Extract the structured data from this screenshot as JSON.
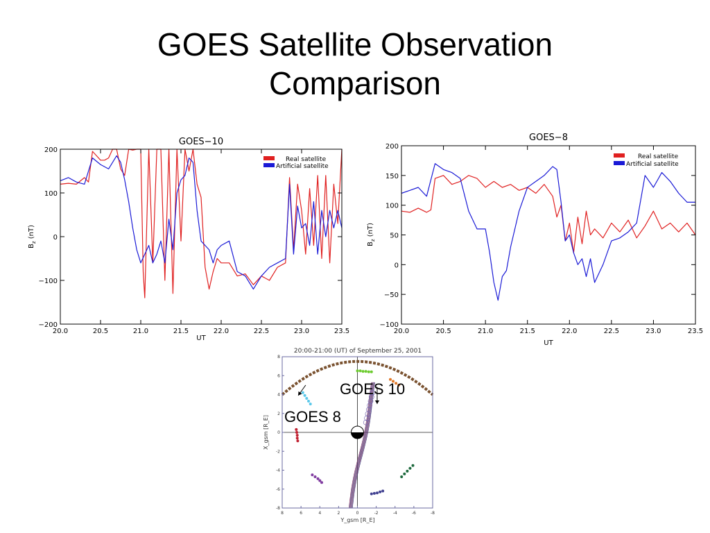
{
  "slide": {
    "title_line1": "GOES Satellite Observation",
    "title_line2": "Comparison"
  },
  "colors": {
    "real": "#e02020",
    "artificial": "#1a1ad6",
    "dashed_arc": "#7a5230"
  },
  "chart_data": [
    {
      "type": "line",
      "title": "GOES−10",
      "xlabel": "UT",
      "ylabel": "B_z (nT)",
      "ylabel_main": "B",
      "ylabel_sub": "z",
      "ylabel_unit": " (nT)",
      "xlim": [
        20.0,
        23.5
      ],
      "ylim": [
        -200,
        200
      ],
      "xticks": [
        20.0,
        20.5,
        21.0,
        21.5,
        22.0,
        22.5,
        23.0,
        23.5
      ],
      "xtick_labels": [
        "20.0",
        "20.5",
        "21.0",
        "21.5",
        "22.0",
        "22.5",
        "23.0",
        "23.5"
      ],
      "yticks": [
        -200,
        -100,
        0,
        100,
        200
      ],
      "ytick_labels": [
        "−200",
        "−100",
        "0",
        "100",
        "200"
      ],
      "legend_position": "top-right",
      "series": [
        {
          "name": "Real satellite",
          "color": "#e02020",
          "x": [
            20.0,
            20.1,
            20.2,
            20.3,
            20.35,
            20.4,
            20.45,
            20.5,
            20.55,
            20.6,
            20.65,
            20.7,
            20.75,
            20.8,
            20.85,
            20.9,
            20.95,
            21.0,
            21.03,
            21.05,
            21.1,
            21.15,
            21.2,
            21.25,
            21.3,
            21.35,
            21.4,
            21.45,
            21.5,
            21.55,
            21.6,
            21.65,
            21.7,
            21.75,
            21.8,
            21.85,
            21.9,
            21.95,
            22.0,
            22.1,
            22.2,
            22.3,
            22.4,
            22.5,
            22.6,
            22.7,
            22.8,
            22.85,
            22.9,
            22.95,
            23.0,
            23.05,
            23.1,
            23.15,
            23.2,
            23.25,
            23.3,
            23.35,
            23.4,
            23.45,
            23.5
          ],
          "y": [
            120,
            122,
            120,
            135,
            125,
            195,
            185,
            175,
            175,
            180,
            200,
            200,
            155,
            140,
            200,
            198,
            200,
            200,
            -80,
            -140,
            200,
            -60,
            200,
            200,
            -100,
            200,
            -130,
            200,
            -10,
            200,
            150,
            200,
            120,
            90,
            -70,
            -120,
            -80,
            -50,
            -60,
            -60,
            -90,
            -85,
            -110,
            -90,
            -100,
            -70,
            -60,
            135,
            -30,
            120,
            60,
            -40,
            110,
            -20,
            140,
            -50,
            140,
            -60,
            120,
            30,
            200
          ]
        },
        {
          "name": "Artificial satellite",
          "color": "#1a1ad6",
          "x": [
            20.0,
            20.1,
            20.2,
            20.3,
            20.4,
            20.5,
            20.6,
            20.7,
            20.75,
            20.8,
            20.85,
            20.9,
            20.95,
            21.0,
            21.05,
            21.1,
            21.15,
            21.2,
            21.25,
            21.3,
            21.35,
            21.4,
            21.45,
            21.5,
            21.55,
            21.6,
            21.65,
            21.7,
            21.75,
            21.8,
            21.85,
            21.9,
            21.95,
            22.0,
            22.1,
            22.2,
            22.3,
            22.4,
            22.5,
            22.6,
            22.7,
            22.8,
            22.85,
            22.9,
            22.95,
            23.0,
            23.05,
            23.1,
            23.15,
            23.2,
            23.25,
            23.3,
            23.35,
            23.4,
            23.45,
            23.5
          ],
          "y": [
            128,
            135,
            125,
            120,
            180,
            165,
            155,
            185,
            170,
            130,
            80,
            20,
            -30,
            -60,
            -40,
            -20,
            -60,
            -40,
            -10,
            -60,
            40,
            -30,
            100,
            130,
            140,
            180,
            170,
            60,
            -10,
            -20,
            -30,
            -60,
            -30,
            -20,
            -10,
            -80,
            -90,
            -120,
            -90,
            -70,
            -60,
            -50,
            120,
            -40,
            70,
            20,
            30,
            -20,
            80,
            -40,
            60,
            0,
            60,
            20,
            60,
            20
          ]
        }
      ]
    },
    {
      "type": "line",
      "title": "GOES−8",
      "xlabel": "UT",
      "ylabel": "B_z (nT)",
      "ylabel_main": "B",
      "ylabel_sub": "z",
      "ylabel_unit": " (nT)",
      "xlim": [
        20.0,
        23.5
      ],
      "ylim": [
        -100,
        200
      ],
      "xticks": [
        20.0,
        20.5,
        21.0,
        21.5,
        22.0,
        22.5,
        23.0,
        23.5
      ],
      "xtick_labels": [
        "20.0",
        "20.5",
        "21.0",
        "21.5",
        "22.0",
        "22.5",
        "23.0",
        "23.5"
      ],
      "yticks": [
        -100,
        -50,
        0,
        50,
        100,
        150,
        200
      ],
      "ytick_labels": [
        "−100",
        "−50",
        "0",
        "50",
        "100",
        "150",
        "200"
      ],
      "legend_position": "top-right",
      "series": [
        {
          "name": "Real satellite",
          "color": "#e02020",
          "x": [
            20.0,
            20.1,
            20.2,
            20.3,
            20.35,
            20.4,
            20.5,
            20.6,
            20.7,
            20.8,
            20.9,
            21.0,
            21.1,
            21.2,
            21.3,
            21.4,
            21.5,
            21.6,
            21.7,
            21.8,
            21.85,
            21.9,
            21.95,
            22.0,
            22.05,
            22.1,
            22.15,
            22.2,
            22.25,
            22.3,
            22.4,
            22.5,
            22.6,
            22.7,
            22.8,
            22.9,
            23.0,
            23.1,
            23.2,
            23.3,
            23.4,
            23.5
          ],
          "y": [
            90,
            88,
            95,
            88,
            92,
            145,
            150,
            135,
            140,
            150,
            145,
            130,
            140,
            130,
            135,
            125,
            130,
            120,
            135,
            115,
            80,
            100,
            40,
            70,
            20,
            80,
            35,
            90,
            50,
            60,
            45,
            70,
            55,
            75,
            45,
            65,
            90,
            60,
            70,
            55,
            70,
            50
          ]
        },
        {
          "name": "Artificial satellite",
          "color": "#1a1ad6",
          "x": [
            20.0,
            20.1,
            20.2,
            20.3,
            20.4,
            20.5,
            20.6,
            20.7,
            20.8,
            20.9,
            21.0,
            21.05,
            21.1,
            21.15,
            21.2,
            21.25,
            21.3,
            21.4,
            21.5,
            21.6,
            21.7,
            21.8,
            21.85,
            21.9,
            21.95,
            22.0,
            22.05,
            22.1,
            22.15,
            22.2,
            22.25,
            22.3,
            22.4,
            22.5,
            22.6,
            22.7,
            22.8,
            22.9,
            23.0,
            23.1,
            23.2,
            23.3,
            23.4,
            23.5
          ],
          "y": [
            120,
            125,
            130,
            115,
            170,
            160,
            155,
            145,
            90,
            60,
            60,
            20,
            -30,
            -60,
            -20,
            -10,
            30,
            90,
            130,
            140,
            150,
            165,
            160,
            105,
            40,
            50,
            20,
            0,
            10,
            -20,
            10,
            -30,
            0,
            40,
            45,
            55,
            70,
            150,
            130,
            155,
            140,
            120,
            105,
            105
          ]
        }
      ]
    },
    {
      "type": "scatter",
      "title": "20:00-21:00 (UT) of September 25, 2001",
      "xlabel": "Y_gsm [R_E]",
      "ylabel": "X_gsm [R_E]",
      "xlim": [
        8,
        -8
      ],
      "ylim": [
        -8,
        8
      ],
      "xticks": [
        8,
        6,
        4,
        2,
        0,
        -2,
        -4,
        -6,
        -8
      ],
      "xtick_labels": [
        "8",
        "6",
        "4",
        "2",
        "0",
        "-2",
        "-4",
        "-6",
        "-8"
      ],
      "yticks": [
        -8,
        -6,
        -4,
        -2,
        0,
        2,
        4,
        6,
        8
      ],
      "ytick_labels": [
        "-8",
        "-6",
        "-4",
        "-2",
        "0",
        "2",
        "4",
        "6",
        "8"
      ],
      "annotations": [
        "GOES 10",
        "GOES 8"
      ],
      "series": [
        {
          "color": "#5bc8ea",
          "x": [
            5.0,
            5.2,
            5.4,
            5.6,
            5.8
          ],
          "y": [
            3.0,
            3.3,
            3.6,
            3.9,
            4.2
          ]
        },
        {
          "color": "#6ccb2e",
          "x": [
            0.0,
            -0.3,
            -0.6,
            -0.9,
            -1.2,
            -1.5
          ],
          "y": [
            6.5,
            6.5,
            6.45,
            6.45,
            6.4,
            6.4
          ]
        },
        {
          "color": "#e07828",
          "x": [
            -3.5,
            -3.8,
            -4.1,
            -4.4
          ],
          "y": [
            5.6,
            5.4,
            5.2,
            5.0
          ]
        },
        {
          "color": "#c02030",
          "x": [
            6.5,
            6.45,
            6.4,
            6.4,
            6.35
          ],
          "y": [
            0.3,
            0.0,
            -0.3,
            -0.6,
            -0.9
          ]
        },
        {
          "color": "#803ca0",
          "x": [
            4.8,
            4.5,
            4.2,
            4.0,
            3.8
          ],
          "y": [
            -4.5,
            -4.7,
            -4.9,
            -5.1,
            -5.3
          ]
        },
        {
          "color": "#404090",
          "x": [
            -1.5,
            -1.8,
            -2.1,
            -2.4,
            -2.7
          ],
          "y": [
            -6.5,
            -6.45,
            -6.4,
            -6.3,
            -6.2
          ]
        },
        {
          "color": "#1e6a3e",
          "x": [
            -4.7,
            -5.0,
            -5.3,
            -5.6,
            -5.9
          ],
          "y": [
            -4.7,
            -4.4,
            -4.1,
            -3.8,
            -3.5
          ]
        }
      ]
    }
  ]
}
